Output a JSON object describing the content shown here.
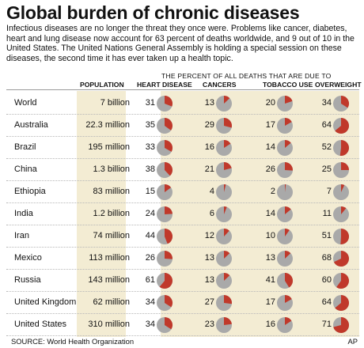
{
  "title": "Global burden of chronic diseases",
  "intro": "Infectious diseases are no longer the threat they once were. Problems like cancer, diabetes, heart and lung disease now account for 63 percent of deaths worldwide, and 9 out of 10 in the United States. The United Nations General Assembly is holding a special session on these diseases, the second time it has ever taken up a health topic.",
  "supheader": "THE PERCENT OF ALL DEATHS THAT ARE DUE TO",
  "columns": {
    "population": "POPULATION",
    "heart": "HEART DISEASE",
    "cancers": "CANCERS",
    "tobacco": "TOBACCO USE",
    "overweight": "OVERWEIGHT"
  },
  "colors": {
    "slice": "#c0392b",
    "pie_base": "#a9a9a9",
    "band": "#f3ecd3"
  },
  "source": "SOURCE: World Health Organization",
  "credit": "AP",
  "chart_data": {
    "type": "table",
    "categories": [
      "World",
      "Australia",
      "Brazil",
      "China",
      "Ethiopia",
      "India",
      "Iran",
      "Mexico",
      "Russia",
      "United Kingdom",
      "United States"
    ],
    "population": [
      "7 billion",
      "22.3 million",
      "195 million",
      "1.3 billion",
      "83 million",
      "1.2 billion",
      "74 million",
      "113 million",
      "143 million",
      "62 million",
      "310 million"
    ],
    "series": [
      {
        "name": "HEART DISEASE",
        "key": "heart",
        "values": [
          31,
          35,
          33,
          38,
          15,
          24,
          44,
          26,
          61,
          34,
          34
        ]
      },
      {
        "name": "CANCERS",
        "key": "cancers",
        "values": [
          13,
          29,
          16,
          21,
          4,
          6,
          12,
          13,
          13,
          27,
          23
        ]
      },
      {
        "name": "TOBACCO USE",
        "key": "tobacco",
        "values": [
          20,
          17,
          14,
          26,
          2,
          14,
          10,
          13,
          41,
          17,
          16
        ]
      },
      {
        "name": "OVERWEIGHT",
        "key": "overweight",
        "values": [
          34,
          64,
          52,
          25,
          7,
          11,
          51,
          68,
          60,
          64,
          71
        ]
      }
    ],
    "unit": "percent of all deaths"
  }
}
